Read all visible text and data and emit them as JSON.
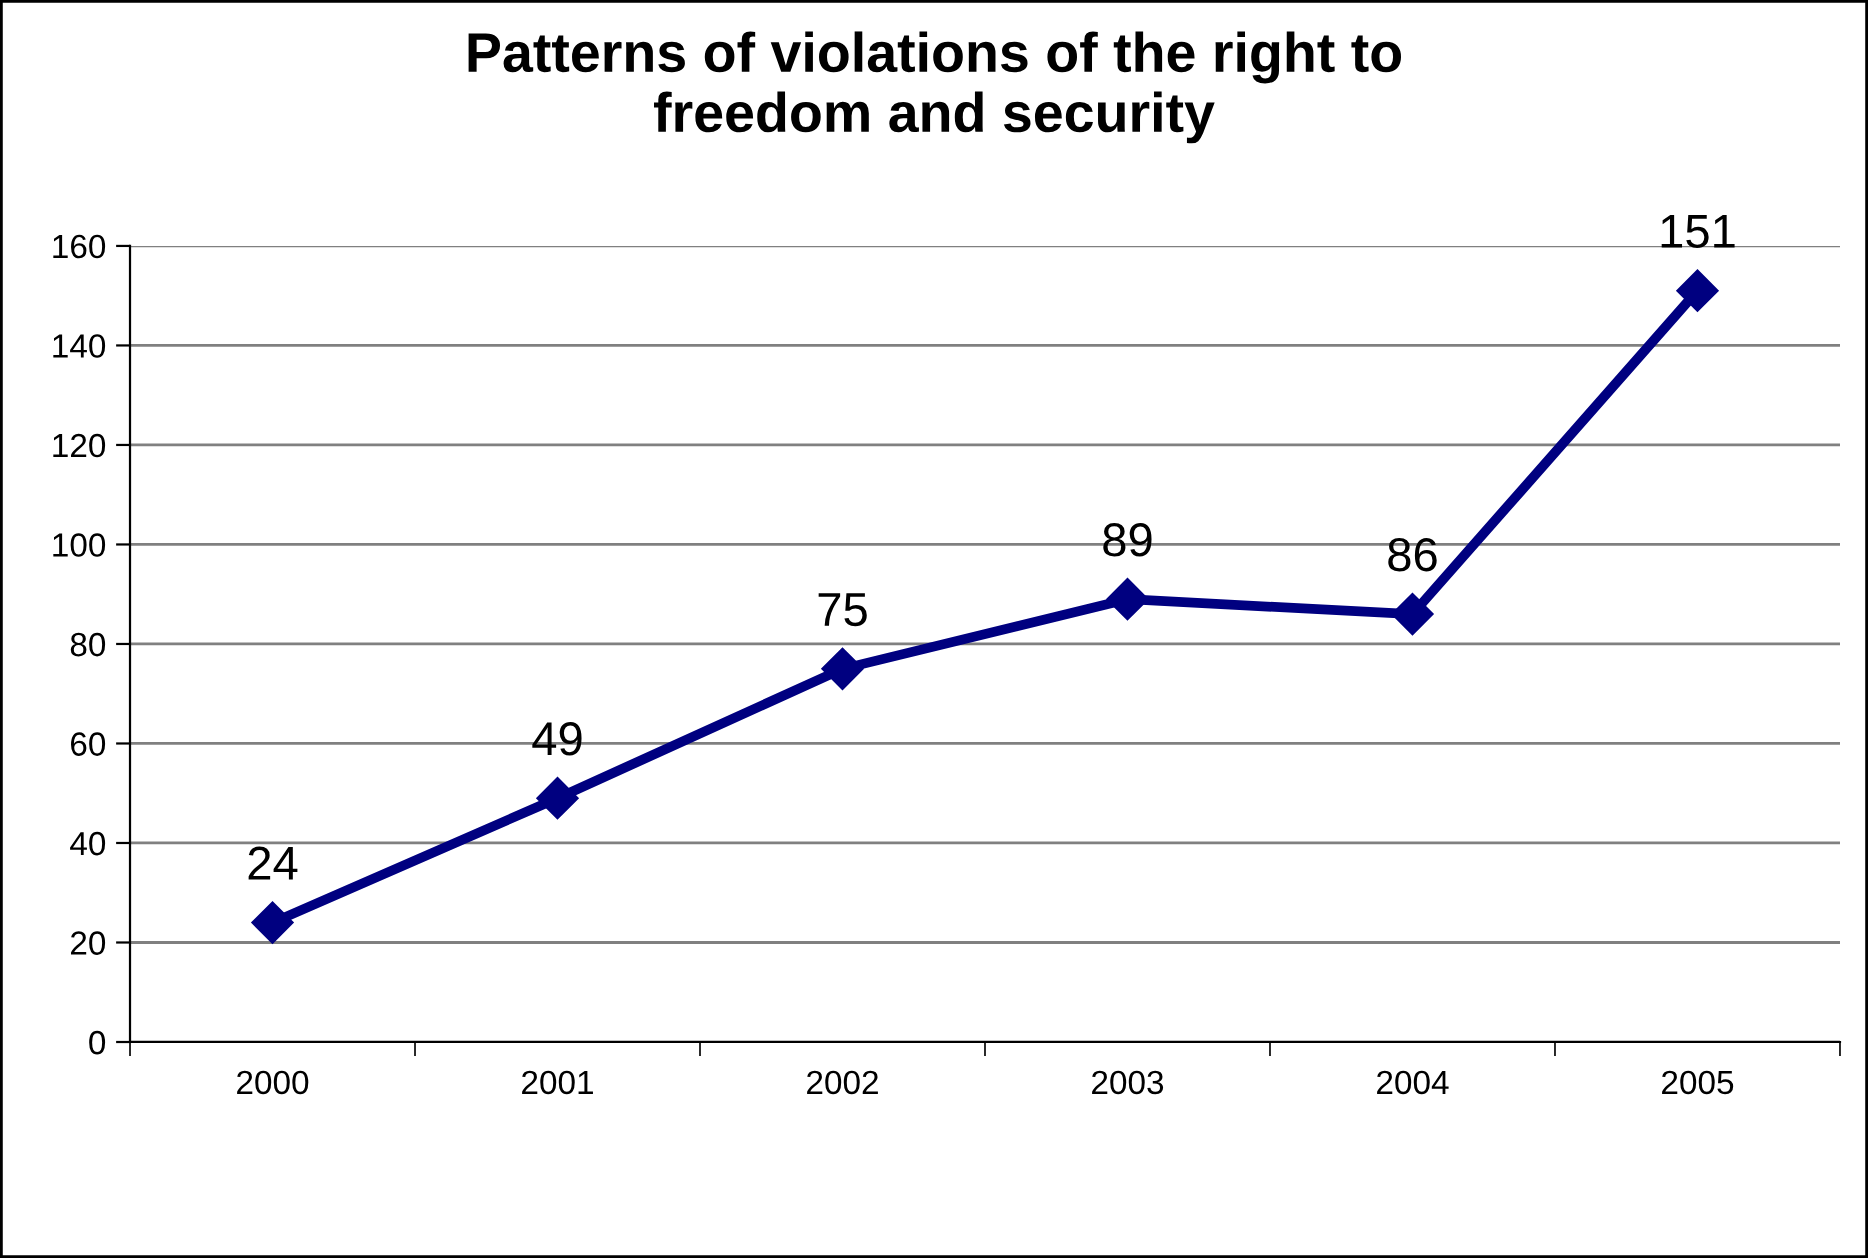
{
  "chart_data": {
    "type": "line",
    "title": "Patterns of violations of the right to\nfreedom and security",
    "categories": [
      "2000",
      "2001",
      "2002",
      "2003",
      "2004",
      "2005"
    ],
    "series": [
      {
        "color": "#000080",
        "values": [
          24,
          49,
          75,
          89,
          86,
          151
        ]
      }
    ],
    "ylim": [
      0,
      160
    ],
    "yticks": [
      0,
      20,
      40,
      60,
      80,
      100,
      120,
      140,
      160
    ],
    "grid": "y",
    "marker": "diamond",
    "line_style": "solid",
    "data_labels": true,
    "legend": false
  }
}
